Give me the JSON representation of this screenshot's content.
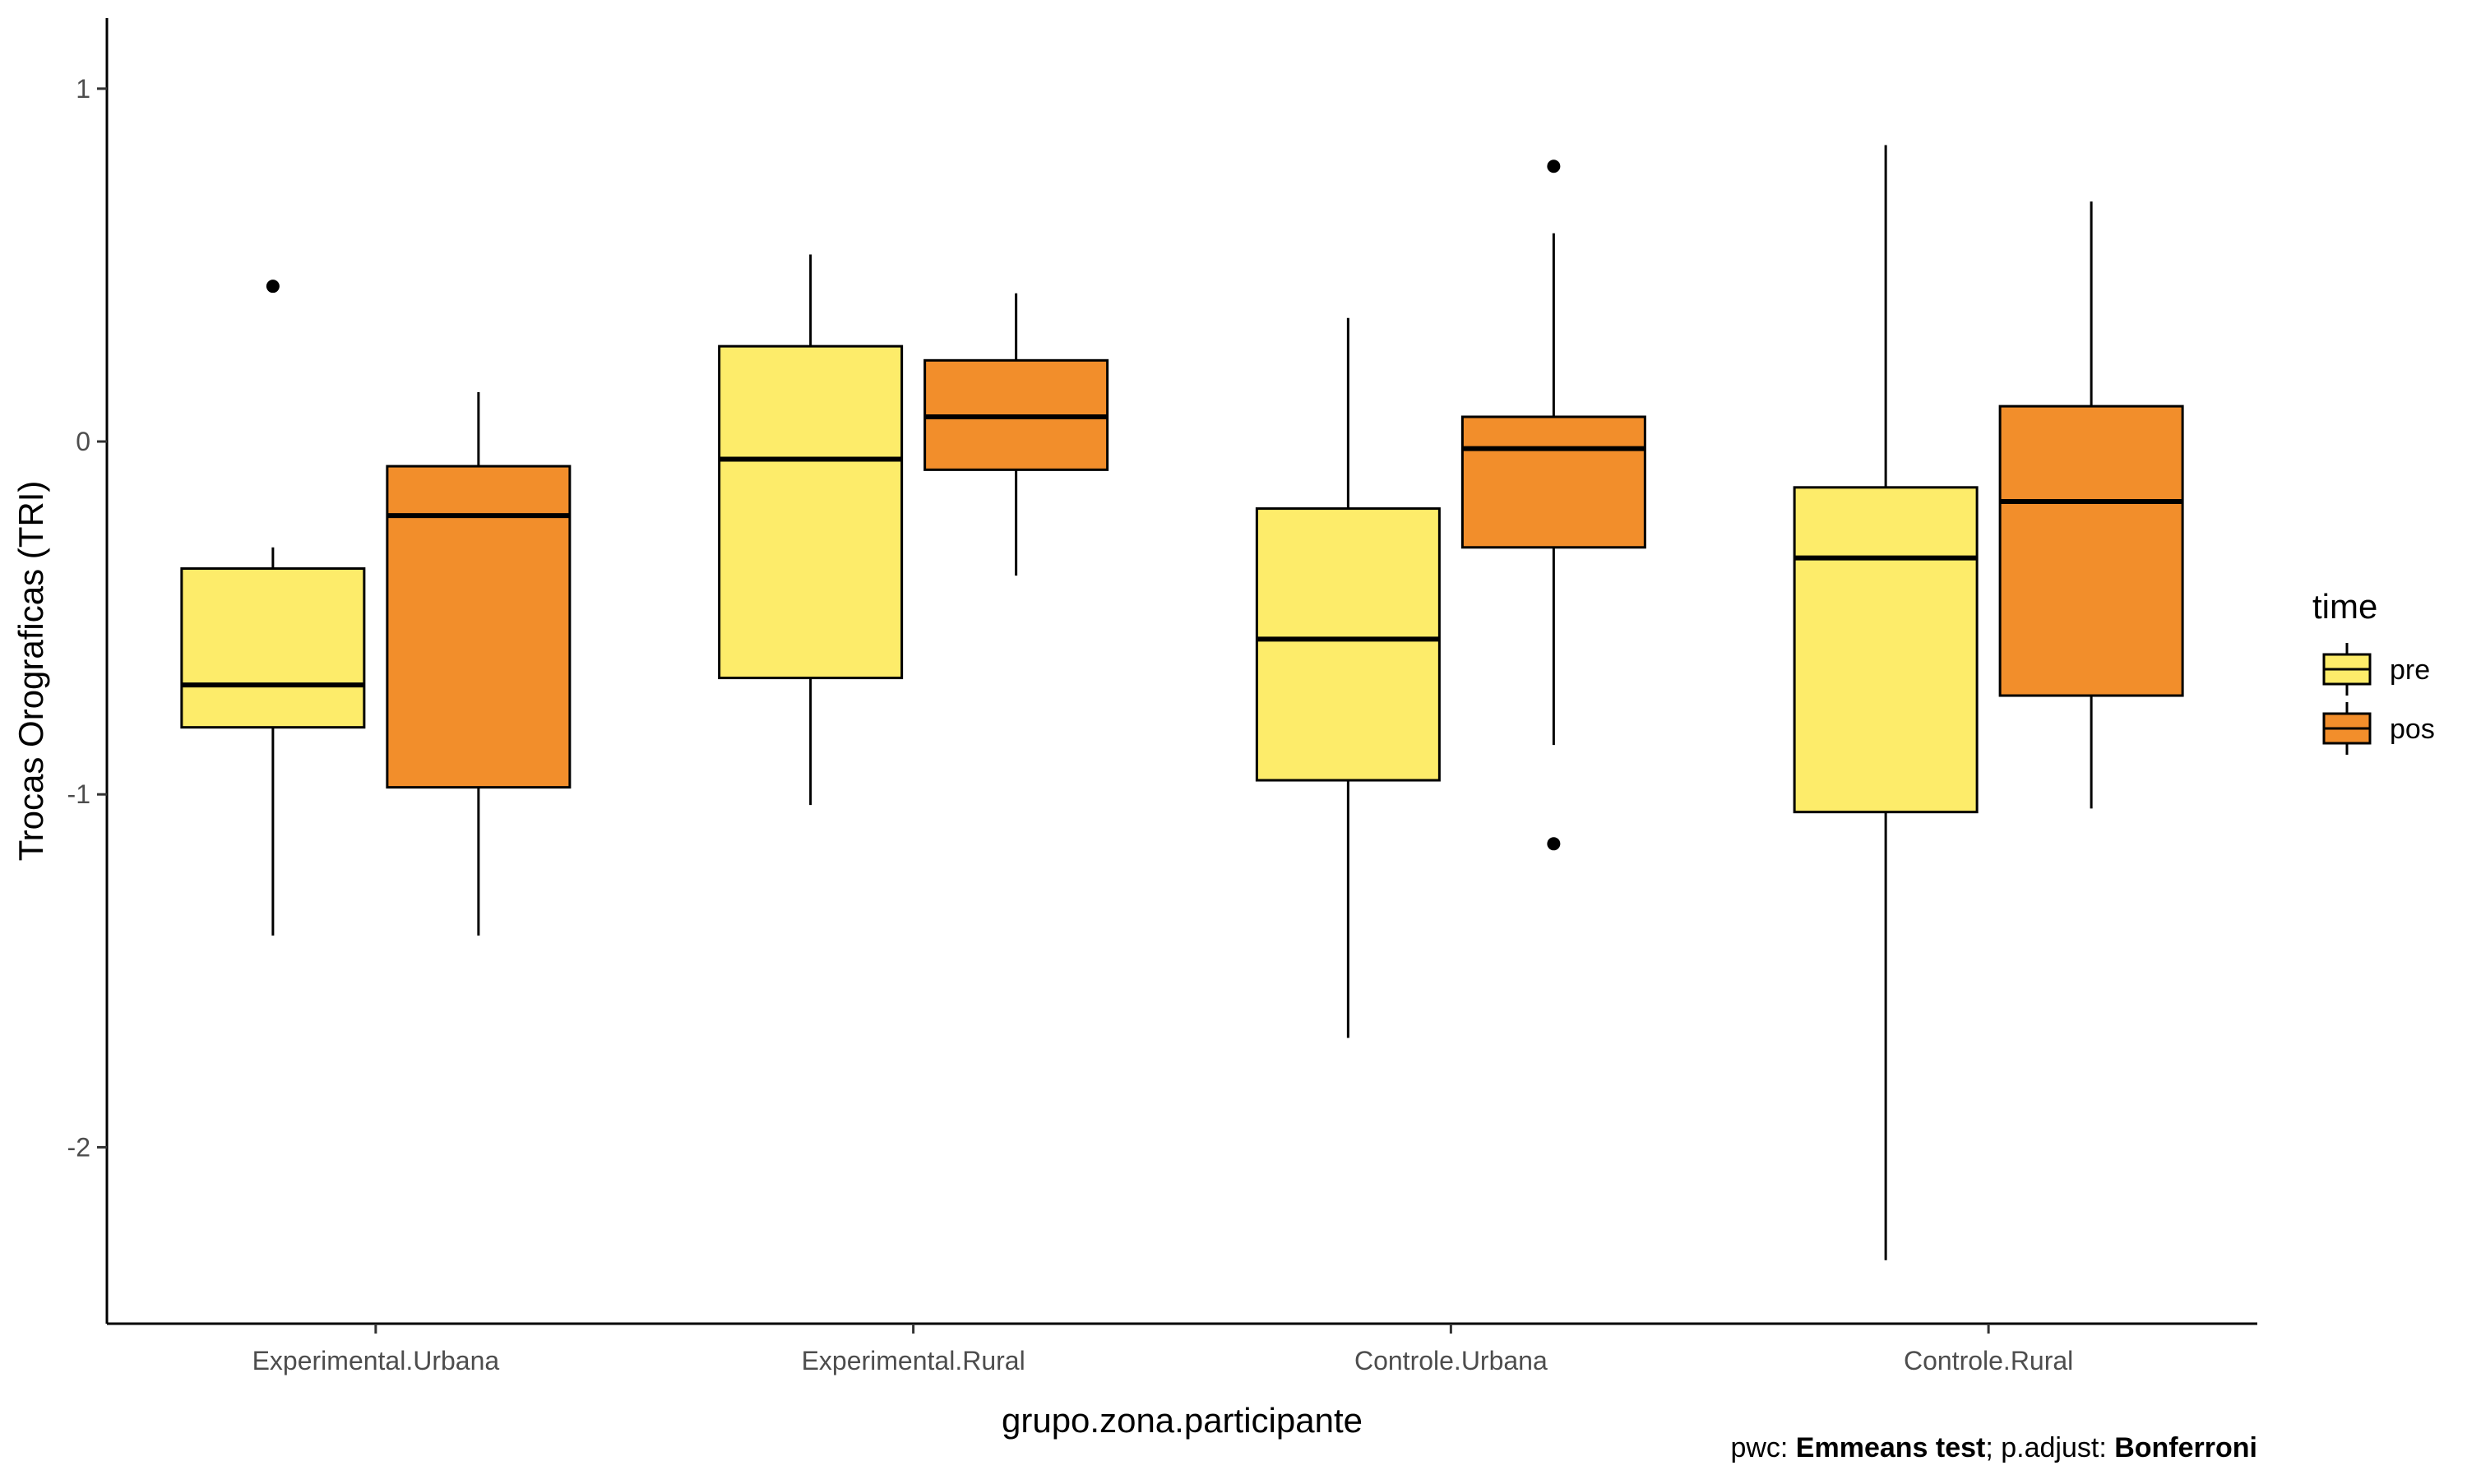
{
  "chart_data": {
    "type": "boxplot",
    "title": "",
    "xlabel": "grupo.zona.participante",
    "ylabel": "Trocas Orograficas (TRI)",
    "ylim": [
      -2.5,
      1.2
    ],
    "y_ticks": [
      1,
      0,
      -1,
      -2
    ],
    "y_tick_labels": [
      "1",
      "0",
      "-1",
      "-2"
    ],
    "grid": false,
    "legend": {
      "title": "time",
      "position": "right",
      "entries": [
        "pre",
        "pos"
      ]
    },
    "categories": [
      "Experimental.Urbana",
      "Experimental.Rural",
      "Controle.Urbana",
      "Controle.Rural"
    ],
    "series": [
      {
        "name": "pre",
        "color": "#FDEC6A",
        "boxes": [
          {
            "whisker_low": -1.4,
            "q1": -0.81,
            "median": -0.69,
            "q3": -0.36,
            "whisker_high": -0.3,
            "outliers": [
              0.44
            ]
          },
          {
            "whisker_low": -1.03,
            "q1": -0.67,
            "median": -0.05,
            "q3": 0.27,
            "whisker_high": 0.53,
            "outliers": []
          },
          {
            "whisker_low": -1.69,
            "q1": -0.96,
            "median": -0.56,
            "q3": -0.19,
            "whisker_high": 0.35,
            "outliers": []
          },
          {
            "whisker_low": -2.32,
            "q1": -1.05,
            "median": -0.33,
            "q3": -0.13,
            "whisker_high": 0.84,
            "outliers": []
          }
        ]
      },
      {
        "name": "pos",
        "color": "#F28E2B",
        "boxes": [
          {
            "whisker_low": -1.4,
            "q1": -0.98,
            "median": -0.21,
            "q3": -0.07,
            "whisker_high": 0.14,
            "outliers": []
          },
          {
            "whisker_low": -0.38,
            "q1": -0.08,
            "median": 0.07,
            "q3": 0.23,
            "whisker_high": 0.42,
            "outliers": []
          },
          {
            "whisker_low": -0.86,
            "q1": -0.3,
            "median": -0.02,
            "q3": 0.07,
            "whisker_high": 0.59,
            "outliers": [
              0.78,
              -1.14
            ]
          },
          {
            "whisker_low": -1.04,
            "q1": -0.72,
            "median": -0.17,
            "q3": 0.1,
            "whisker_high": 0.68,
            "outliers": []
          }
        ]
      }
    ],
    "caption": {
      "prefix": "pwc: ",
      "test": "Emmeans test",
      "middle": "; p.adjust: ",
      "method": "Bonferroni"
    }
  }
}
